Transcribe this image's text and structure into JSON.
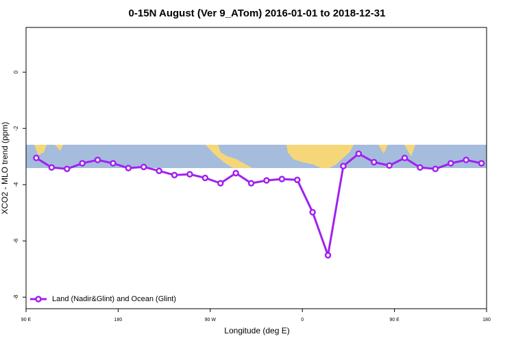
{
  "chart_data": {
    "type": "line",
    "title": "0-15N August (Ver 9_ATom)   2016-01-01 to 2018-12-31",
    "x_label": "Longitude (deg E)",
    "y_label": "XCO2 - MLO trend (ppm)",
    "x": [
      100,
      115,
      130,
      145,
      160,
      175,
      190,
      205,
      220,
      235,
      250,
      265,
      280,
      295,
      310,
      325,
      340,
      355,
      370,
      385,
      400,
      415,
      430,
      445,
      460,
      475,
      490,
      505,
      520,
      535
    ],
    "series": [
      {
        "name": "Land (Nadir&Glint) and Ocean (Glint)",
        "color": "#a020f0",
        "values": [
          -3.05,
          -3.39,
          -3.44,
          -3.24,
          -3.12,
          -3.24,
          -3.41,
          -3.37,
          -3.51,
          -3.66,
          -3.63,
          -3.76,
          -3.95,
          -3.59,
          -3.95,
          -3.85,
          -3.8,
          -3.83,
          -4.98,
          -6.51,
          -3.34,
          -2.9,
          -3.2,
          -3.32,
          -3.05,
          -3.39,
          -3.44,
          -3.24,
          -3.12,
          -3.24
        ]
      }
    ],
    "xlim": [
      90,
      540
    ],
    "ylim": [
      -8.41,
      1.59
    ],
    "xticks": [
      {
        "value": 90,
        "label": "90 E"
      },
      {
        "value": 180,
        "label": "180"
      },
      {
        "value": 270,
        "label": "90 W"
      },
      {
        "value": 360,
        "label": "0"
      },
      {
        "value": 450,
        "label": "90 E"
      },
      {
        "value": 540,
        "label": "180"
      }
    ],
    "yticks": [
      0,
      -2,
      -4,
      -6,
      -8
    ],
    "legend": "bottom-left"
  }
}
